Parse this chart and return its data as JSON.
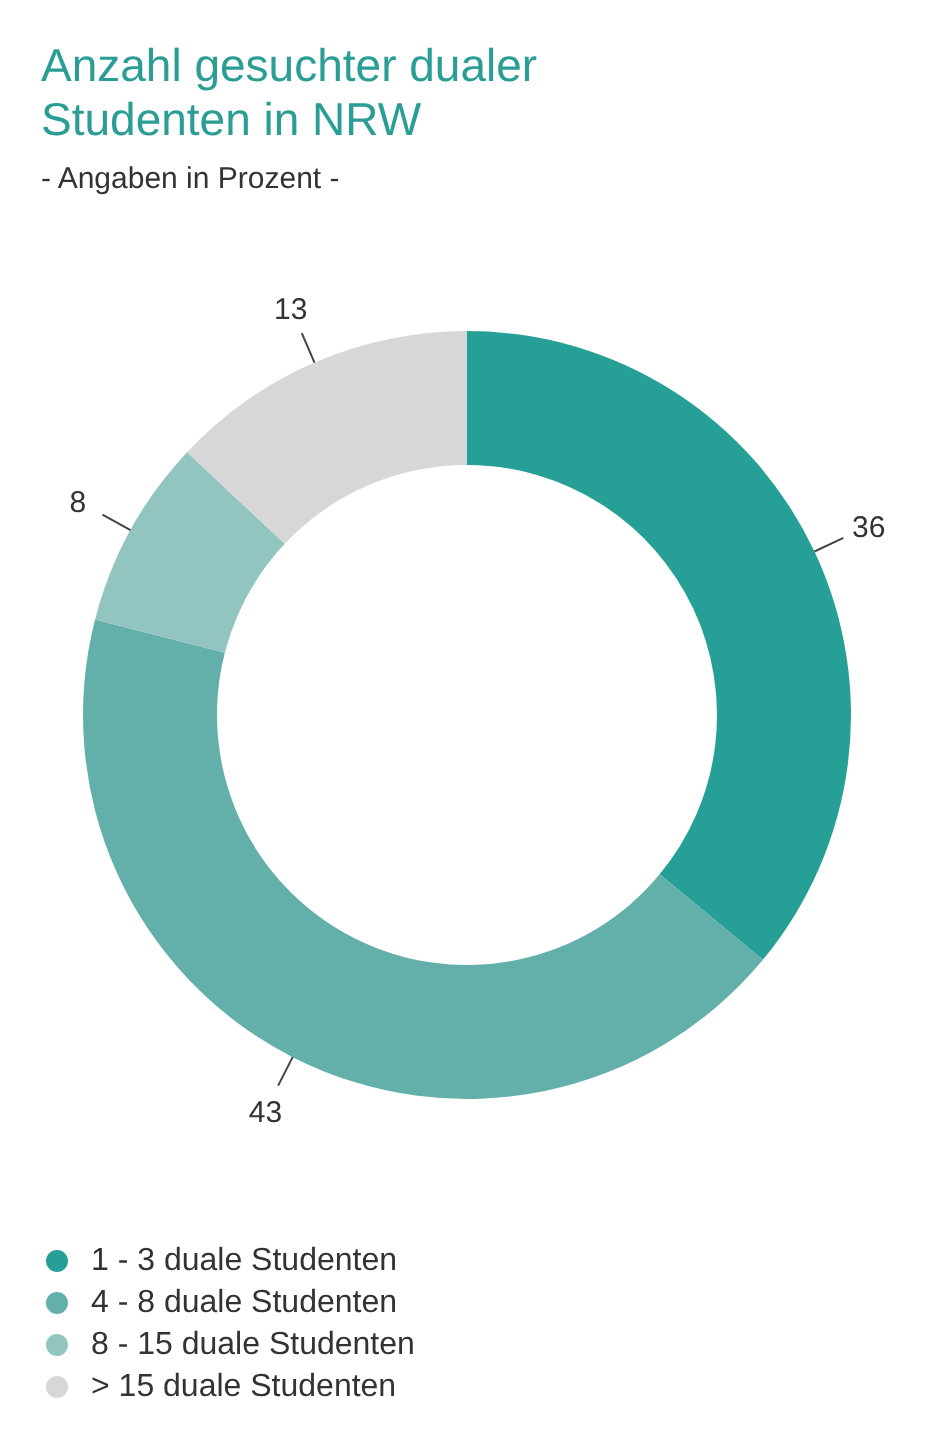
{
  "chart_data": {
    "type": "donut",
    "title": "Anzahl gesuchter dualer Studenten in NRW",
    "subtitle": "- Angaben in Prozent -",
    "categories": [
      "1 - 3 duale Studenten",
      "4 - 8 duale Studenten",
      "8 - 15 duale Studenten",
      "> 15 duale Studenten"
    ],
    "values": [
      36,
      43,
      8,
      13
    ],
    "colors": [
      "#26a096",
      "#63b0aa",
      "#93c5c0",
      "#d7d7d7"
    ],
    "data_labels": true,
    "legend": "bottom left"
  }
}
